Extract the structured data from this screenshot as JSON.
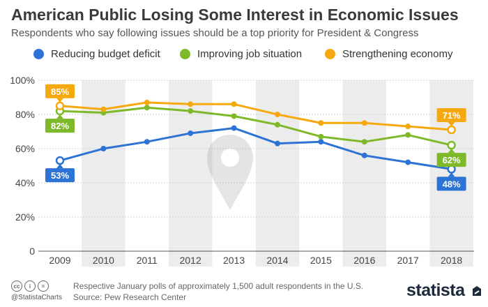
{
  "header": {
    "title": "American Public Losing Some Interest in Economic Issues",
    "subtitle": "Respondents who say following issues should be a top priority for President & Congress"
  },
  "footer": {
    "note": "Respective January polls of approximately 1,500 adult respondents in the U.S.",
    "source": "Source: Pew Research Center",
    "handle": "@StatistaCharts",
    "logo": "statista"
  },
  "chart_data": {
    "type": "line",
    "categories": [
      "2009",
      "2010",
      "2011",
      "2012",
      "2013",
      "2014",
      "2015",
      "2016",
      "2017",
      "2018"
    ],
    "series": [
      {
        "name": "Reducing budget deficit",
        "color": "#2d73d5",
        "values": [
          53,
          60,
          64,
          69,
          72,
          63,
          64,
          56,
          52,
          48
        ]
      },
      {
        "name": "Improving job situation",
        "color": "#7db928",
        "values": [
          82,
          81,
          84,
          82,
          79,
          74,
          67,
          64,
          68,
          62
        ]
      },
      {
        "name": "Strengthening economy",
        "color": "#f5a90f",
        "values": [
          85,
          83,
          87,
          86,
          86,
          80,
          75,
          75,
          73,
          71
        ]
      }
    ],
    "yticks": [
      "0",
      "20%",
      "40%",
      "60%",
      "80%",
      "100%"
    ],
    "ylim": [
      0,
      100
    ],
    "endpoint_labels": {
      "first": [
        "53%",
        "82%",
        "85%"
      ],
      "last": [
        "48%",
        "62%",
        "71%"
      ]
    },
    "grid": true,
    "legend": "top"
  }
}
